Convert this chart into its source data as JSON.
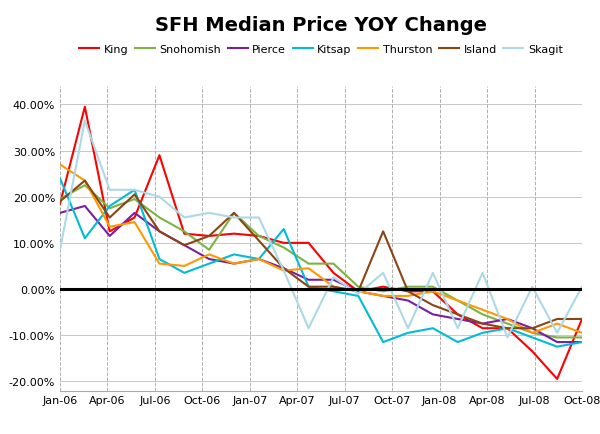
{
  "title": "SFH Median Price YOY Change",
  "x_labels": [
    "Jan-06",
    "Apr-06",
    "Jul-06",
    "Oct-06",
    "Jan-07",
    "Apr-07",
    "Jul-07",
    "Oct-07",
    "Jan-08",
    "Apr-08",
    "Jul-08",
    "Oct-08"
  ],
  "series": {
    "King": {
      "color": "#FF0000",
      "lw": 1.5,
      "values": [
        0.185,
        0.395,
        0.125,
        0.155,
        0.29,
        0.12,
        0.115,
        0.12,
        0.115,
        0.1,
        0.1,
        0.035,
        -0.005,
        0.005,
        -0.005,
        -0.005,
        -0.055,
        -0.085,
        -0.085,
        -0.135,
        -0.195,
        -0.065
      ]
    },
    "Snohomish": {
      "color": "#7CB342",
      "lw": 1.5,
      "values": [
        0.195,
        0.225,
        0.175,
        0.195,
        0.155,
        0.125,
        0.085,
        0.165,
        0.115,
        0.09,
        0.055,
        0.055,
        0.005,
        -0.005,
        0.005,
        0.005,
        -0.025,
        -0.055,
        -0.075,
        -0.095,
        -0.105,
        -0.105
      ]
    },
    "Pierce": {
      "color": "#7B1FA2",
      "lw": 1.5,
      "values": [
        0.165,
        0.18,
        0.115,
        0.165,
        0.125,
        0.095,
        0.065,
        0.055,
        0.065,
        0.045,
        0.02,
        0.02,
        -0.005,
        -0.015,
        -0.025,
        -0.055,
        -0.065,
        -0.075,
        -0.065,
        -0.085,
        -0.115,
        -0.115
      ]
    },
    "Kitsap": {
      "color": "#00BCD4",
      "lw": 1.5,
      "values": [
        0.24,
        0.11,
        0.18,
        0.215,
        0.065,
        0.035,
        0.055,
        0.075,
        0.065,
        0.13,
        0.005,
        -0.005,
        -0.015,
        -0.115,
        -0.095,
        -0.085,
        -0.115,
        -0.095,
        -0.085,
        -0.105,
        -0.125,
        -0.115
      ]
    },
    "Thurston": {
      "color": "#FF9800",
      "lw": 1.5,
      "values": [
        0.27,
        0.235,
        0.135,
        0.145,
        0.055,
        0.05,
        0.075,
        0.055,
        0.065,
        0.04,
        0.045,
        0.005,
        -0.005,
        -0.015,
        -0.015,
        -0.005,
        -0.025,
        -0.045,
        -0.065,
        -0.095,
        -0.075,
        -0.095
      ]
    },
    "Island": {
      "color": "#8B4513",
      "lw": 1.5,
      "values": [
        0.19,
        0.235,
        0.155,
        0.205,
        0.125,
        0.095,
        0.115,
        0.165,
        0.105,
        0.045,
        0.005,
        0.005,
        -0.005,
        0.125,
        -0.005,
        -0.035,
        -0.055,
        -0.075,
        -0.085,
        -0.085,
        -0.065,
        -0.065
      ]
    },
    "Skagit": {
      "color": "#ADD8E6",
      "lw": 1.5,
      "values": [
        0.085,
        0.365,
        0.215,
        0.215,
        0.2,
        0.155,
        0.165,
        0.155,
        0.155,
        0.04,
        -0.085,
        0.025,
        -0.01,
        0.035,
        -0.085,
        0.035,
        -0.085,
        0.035,
        -0.105,
        0.005,
        -0.095,
        0.005
      ]
    }
  },
  "n_points": 22,
  "ylim": [
    -0.22,
    0.44
  ],
  "yticks": [
    -0.2,
    -0.1,
    0.0,
    0.1,
    0.2,
    0.3,
    0.4
  ],
  "background_color": "#FFFFFF",
  "grid_color": "#C8C8C8",
  "vgrid_color": "#B0B0B0"
}
